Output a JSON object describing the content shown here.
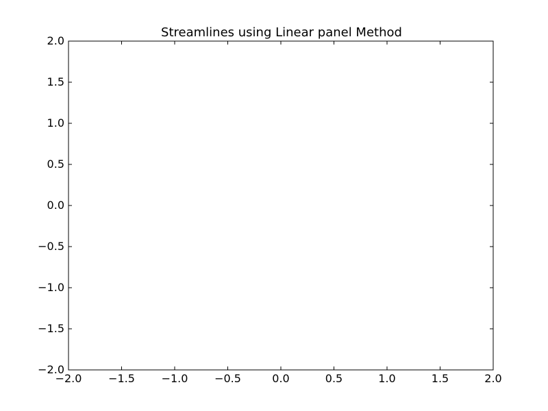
{
  "chart_data": {
    "type": "line",
    "title": "Streamlines using Linear panel Method",
    "xlabel": "",
    "ylabel": "",
    "xlim": [
      -2.0,
      2.0
    ],
    "ylim": [
      -2.0,
      2.0
    ],
    "xticks": [
      -2.0,
      -1.5,
      -1.0,
      -0.5,
      0.0,
      0.5,
      1.0,
      1.5,
      2.0
    ],
    "yticks": [
      -2.0,
      -1.5,
      -1.0,
      -0.5,
      0.0,
      0.5,
      1.0,
      1.5,
      2.0
    ],
    "xtick_labels": [
      "−2.0",
      "−1.5",
      "−1.0",
      "−0.5",
      "0.0",
      "0.5",
      "1.0",
      "1.5",
      "2.0"
    ],
    "ytick_labels": [
      "−2.0",
      "−1.5",
      "−1.0",
      "−0.5",
      "0.0",
      "0.5",
      "1.0",
      "1.5",
      "2.0"
    ],
    "grid": false,
    "series": [],
    "colors": {
      "axes": "#000000",
      "background": "#ffffff"
    }
  }
}
